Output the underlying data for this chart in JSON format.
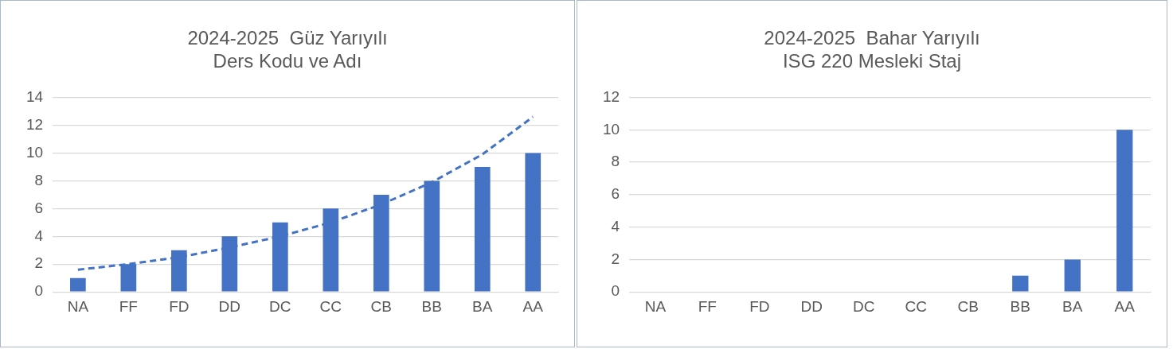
{
  "chart_data": [
    {
      "type": "bar",
      "title": "2024-2025  Güz Yarıyılı\nDers Kodu ve Adı",
      "categories": [
        "NA",
        "FF",
        "FD",
        "DD",
        "DC",
        "CC",
        "CB",
        "BB",
        "BA",
        "AA"
      ],
      "ylim": [
        0,
        14
      ],
      "yticks": [
        0,
        2,
        4,
        6,
        8,
        10,
        12,
        14
      ],
      "grid": "y",
      "legend": false,
      "series": [
        {
          "color": "#4472c4",
          "values": [
            1,
            2,
            3,
            4,
            5,
            6,
            7,
            8,
            9,
            10
          ]
        },
        {
          "type": "line",
          "color": "#4472c4",
          "line_style": "dashed",
          "marker": "none",
          "x": [
            "NA",
            "FF",
            "FD",
            "DD",
            "DC",
            "CC",
            "CB",
            "BB",
            "BA",
            "AA"
          ],
          "values": [
            1.6,
            2.0,
            2.5,
            3.2,
            4.0,
            5.0,
            6.3,
            7.9,
            9.9,
            12.6
          ]
        }
      ]
    },
    {
      "type": "bar",
      "title": "2024-2025  Bahar Yarıyılı\nISG 220 Mesleki Staj",
      "categories": [
        "NA",
        "FF",
        "FD",
        "DD",
        "DC",
        "CC",
        "CB",
        "BB",
        "BA",
        "AA"
      ],
      "ylim": [
        0,
        12
      ],
      "yticks": [
        0,
        2,
        4,
        6,
        8,
        10,
        12
      ],
      "grid": "y",
      "legend": false,
      "series": [
        {
          "color": "#4472c4",
          "values": [
            0,
            0,
            0,
            0,
            0,
            0,
            0,
            1,
            2,
            10
          ]
        }
      ]
    }
  ]
}
